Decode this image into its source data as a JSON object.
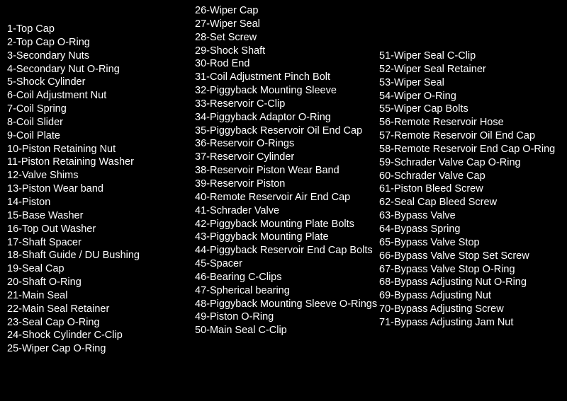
{
  "text_color": "#ffffff",
  "background_color": "#000000",
  "font_family": "Arial",
  "font_size_pt": 11,
  "columns": [
    {
      "items": [
        {
          "n": 1,
          "label": "Top Cap"
        },
        {
          "n": 2,
          "label": "Top Cap O-Ring"
        },
        {
          "n": 3,
          "label": "Secondary Nuts"
        },
        {
          "n": 4,
          "label": "Secondary Nut O-Ring"
        },
        {
          "n": 5,
          "label": "Shock Cylinder"
        },
        {
          "n": 6,
          "label": "Coil Adjustment Nut"
        },
        {
          "n": 7,
          "label": "Coil Spring"
        },
        {
          "n": 8,
          "label": "Coil Slider"
        },
        {
          "n": 9,
          "label": "Coil Plate"
        },
        {
          "n": 10,
          "label": "Piston Retaining Nut"
        },
        {
          "n": 11,
          "label": "Piston Retaining Washer"
        },
        {
          "n": 12,
          "label": "Valve Shims"
        },
        {
          "n": 13,
          "label": "Piston Wear band"
        },
        {
          "n": 14,
          "label": "Piston"
        },
        {
          "n": 15,
          "label": "Base Washer"
        },
        {
          "n": 16,
          "label": "Top Out Washer"
        },
        {
          "n": 17,
          "label": "Shaft Spacer"
        },
        {
          "n": 18,
          "label": "Shaft Guide / DU Bushing"
        },
        {
          "n": 19,
          "label": "Seal Cap"
        },
        {
          "n": 20,
          "label": "Shaft O-Ring"
        },
        {
          "n": 21,
          "label": "Main Seal"
        },
        {
          "n": 22,
          "label": "Main Seal Retainer"
        },
        {
          "n": 23,
          "label": "Seal Cap O-Ring"
        },
        {
          "n": 24,
          "label": "Shock Cylinder C-Clip"
        },
        {
          "n": 25,
          "label": "Wiper Cap O-Ring"
        }
      ]
    },
    {
      "items": [
        {
          "n": 26,
          "label": "Wiper Cap"
        },
        {
          "n": 27,
          "label": "Wiper Seal"
        },
        {
          "n": 28,
          "label": "Set Screw"
        },
        {
          "n": 29,
          "label": "Shock Shaft"
        },
        {
          "n": 30,
          "label": "Rod End"
        },
        {
          "n": 31,
          "label": "Coil Adjustment Pinch Bolt"
        },
        {
          "n": 32,
          "label": "Piggyback Mounting Sleeve"
        },
        {
          "n": 33,
          "label": "Reservoir C-Clip"
        },
        {
          "n": 34,
          "label": "Piggyback Adaptor O-Ring"
        },
        {
          "n": 35,
          "label": "Piggyback Reservoir Oil End Cap"
        },
        {
          "n": 36,
          "label": "Reservoir O-Rings"
        },
        {
          "n": 37,
          "label": "Reservoir Cylinder"
        },
        {
          "n": 38,
          "label": "Reservoir Piston Wear Band"
        },
        {
          "n": 39,
          "label": "Reservoir Piston"
        },
        {
          "n": 40,
          "label": "Remote Reservoir Air End Cap"
        },
        {
          "n": 41,
          "label": "Schrader Valve"
        },
        {
          "n": 42,
          "label": "Piggyback Mounting Plate Bolts"
        },
        {
          "n": 43,
          "label": "Piggyback Mounting Plate"
        },
        {
          "n": 44,
          "label": "Piggyback Reservoir End Cap Bolts"
        },
        {
          "n": 45,
          "label": "Spacer"
        },
        {
          "n": 46,
          "label": "Bearing C-Clips"
        },
        {
          "n": 47,
          "label": "Spherical bearing"
        },
        {
          "n": 48,
          "label": "Piggyback Mounting Sleeve O-Rings"
        },
        {
          "n": 49,
          "label": "Piston O-Ring"
        },
        {
          "n": 50,
          "label": "Main Seal C-Clip"
        }
      ]
    },
    {
      "items": [
        {
          "n": 51,
          "label": "Wiper Seal C-Clip"
        },
        {
          "n": 52,
          "label": "Wiper Seal Retainer"
        },
        {
          "n": 53,
          "label": "Wiper Seal"
        },
        {
          "n": 54,
          "label": "Wiper O-Ring"
        },
        {
          "n": 55,
          "label": "Wiper Cap Bolts"
        },
        {
          "n": 56,
          "label": "Remote Reservoir Hose"
        },
        {
          "n": 57,
          "label": "Remote Reservoir Oil End Cap"
        },
        {
          "n": 58,
          "label": "Remote Reservoir End Cap O-Ring"
        },
        {
          "n": 59,
          "label": "Schrader Valve Cap O-Ring"
        },
        {
          "n": 60,
          "label": "Schrader Valve Cap"
        },
        {
          "n": 61,
          "label": "Piston Bleed Screw"
        },
        {
          "n": 62,
          "label": "Seal Cap Bleed Screw"
        },
        {
          "n": 63,
          "label": "Bypass Valve"
        },
        {
          "n": 64,
          "label": "Bypass Spring"
        },
        {
          "n": 65,
          "label": "Bypass Valve Stop"
        },
        {
          "n": 66,
          "label": "Bypass Valve Stop Set Screw"
        },
        {
          "n": 67,
          "label": "Bypass Valve Stop O-Ring"
        },
        {
          "n": 68,
          "label": "Bypass Adjusting Nut O-Ring"
        },
        {
          "n": 69,
          "label": "Bypass Adjusting Nut"
        },
        {
          "n": 70,
          "label": "Bypass Adjusting Screw"
        },
        {
          "n": 71,
          "label": "Bypass Adjusting Jam Nut"
        }
      ]
    }
  ]
}
